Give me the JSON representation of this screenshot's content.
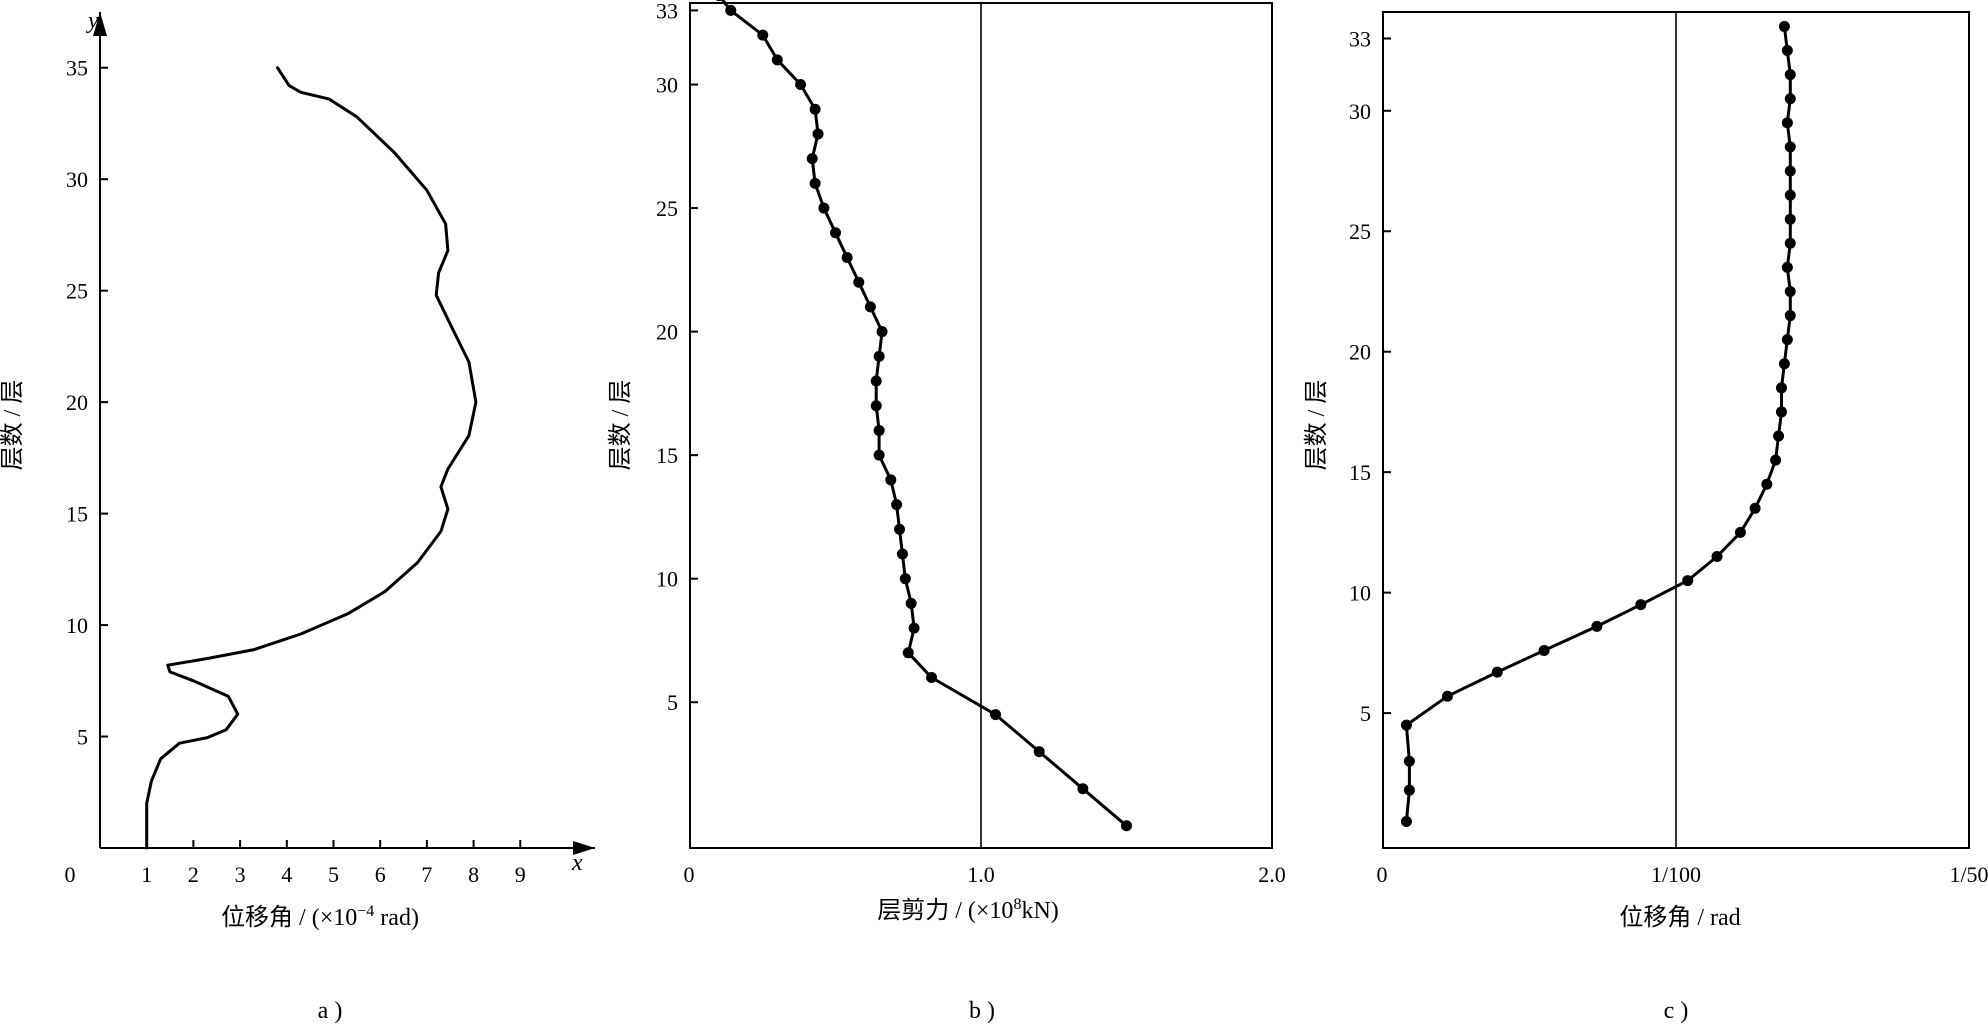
{
  "chart_data": [
    {
      "id": "a",
      "type": "line",
      "caption": "a )",
      "title": "",
      "xlabel": "位移角 / (×10",
      "xlabel_sup": "−4",
      "xlabel_suffix": " rad)",
      "ylabel": "层数 / 层",
      "x_axis_name": "x",
      "y_axis_name": "y",
      "xlim": [
        0,
        10.6
      ],
      "ylim": [
        0,
        37.5
      ],
      "xticks": [
        0,
        1,
        2,
        3,
        4,
        5,
        6,
        7,
        8,
        9
      ],
      "xtick_labels": [
        "0",
        "1",
        "2",
        "3",
        "4",
        "5",
        "6",
        "7",
        "8",
        "9"
      ],
      "yticks": [
        5,
        10,
        15,
        20,
        25,
        30,
        35
      ],
      "ytick_labels": [
        "5",
        "10",
        "15",
        "20",
        "25",
        "30",
        "35"
      ],
      "series": [
        {
          "points": [
            [
              1.0,
              0
            ],
            [
              1.0,
              2.0
            ],
            [
              1.1,
              3.0
            ],
            [
              1.3,
              4.0
            ],
            [
              1.7,
              4.7
            ],
            [
              2.3,
              4.95
            ],
            [
              2.7,
              5.3
            ],
            [
              2.95,
              6.0
            ],
            [
              2.75,
              6.8
            ],
            [
              2.0,
              7.5
            ],
            [
              1.5,
              7.9
            ],
            [
              1.45,
              8.2
            ],
            [
              2.3,
              8.5
            ],
            [
              3.3,
              8.9
            ],
            [
              4.3,
              9.6
            ],
            [
              5.3,
              10.5
            ],
            [
              6.1,
              11.5
            ],
            [
              6.8,
              12.8
            ],
            [
              7.3,
              14.2
            ],
            [
              7.45,
              15.2
            ],
            [
              7.3,
              16.2
            ],
            [
              7.45,
              17.0
            ],
            [
              7.9,
              18.5
            ],
            [
              8.05,
              20.0
            ],
            [
              7.9,
              21.8
            ],
            [
              7.5,
              23.5
            ],
            [
              7.2,
              24.8
            ],
            [
              7.25,
              25.8
            ],
            [
              7.45,
              26.8
            ],
            [
              7.4,
              28.0
            ],
            [
              7.0,
              29.5
            ],
            [
              6.3,
              31.2
            ],
            [
              5.5,
              32.8
            ],
            [
              4.9,
              33.6
            ],
            [
              4.3,
              33.9
            ],
            [
              4.05,
              34.2
            ],
            [
              3.8,
              35.0
            ]
          ]
        }
      ]
    },
    {
      "id": "b",
      "type": "line",
      "caption": "b )",
      "title": "",
      "xlabel": "层剪力 / (×10",
      "xlabel_sup": "8",
      "xlabel_suffix": "kN)",
      "ylabel": "层数 / 层",
      "xlim": [
        0,
        2.0
      ],
      "ylim": [
        -0.9,
        33.3
      ],
      "xticks": [
        0,
        1.0,
        2.0
      ],
      "xtick_labels": [
        "0",
        "1.0",
        "2.0"
      ],
      "yticks": [
        5,
        10,
        15,
        20,
        25,
        30,
        33
      ],
      "ytick_labels": [
        "5",
        "10",
        "15",
        "20",
        "25",
        "30",
        "33"
      ],
      "reference_x": 1.0,
      "series": [
        {
          "markers": true,
          "points": [
            [
              1.5,
              0
            ],
            [
              1.35,
              1.5
            ],
            [
              1.2,
              3.0
            ],
            [
              1.05,
              4.5
            ],
            [
              0.83,
              6.0
            ],
            [
              0.75,
              7.0
            ],
            [
              0.77,
              8.0
            ],
            [
              0.76,
              9.0
            ],
            [
              0.74,
              10.0
            ],
            [
              0.73,
              11.0
            ],
            [
              0.72,
              12.0
            ],
            [
              0.71,
              13.0
            ],
            [
              0.69,
              14.0
            ],
            [
              0.65,
              15.0
            ],
            [
              0.65,
              16.0
            ],
            [
              0.64,
              17.0
            ],
            [
              0.64,
              18.0
            ],
            [
              0.65,
              19.0
            ],
            [
              0.66,
              20.0
            ],
            [
              0.62,
              21.0
            ],
            [
              0.58,
              22.0
            ],
            [
              0.54,
              23.0
            ],
            [
              0.5,
              24.0
            ],
            [
              0.46,
              25.0
            ],
            [
              0.43,
              26.0
            ],
            [
              0.42,
              27.0
            ],
            [
              0.44,
              28.0
            ],
            [
              0.43,
              29.0
            ],
            [
              0.38,
              30.0
            ],
            [
              0.3,
              31.0
            ],
            [
              0.25,
              32.0
            ],
            [
              0.14,
              33.0
            ],
            [
              0.1,
              33.6
            ]
          ]
        }
      ]
    },
    {
      "id": "c",
      "type": "line",
      "caption": "c )",
      "title": "",
      "xlabel": "位移角 / rad",
      "ylabel": "层数 / 层",
      "xlim": [
        0,
        0.02
      ],
      "ylim": [
        -0.6,
        34.1
      ],
      "xticks": [
        0,
        0.01,
        0.02
      ],
      "xtick_labels": [
        "0",
        "1/100",
        "1/50"
      ],
      "yticks": [
        5,
        10,
        15,
        20,
        25,
        30,
        33
      ],
      "ytick_labels": [
        "5",
        "10",
        "15",
        "20",
        "25",
        "30",
        "33"
      ],
      "reference_x": 0.01,
      "series": [
        {
          "markers": true,
          "points": [
            [
              0.0008,
              0.5
            ],
            [
              0.0009,
              1.8
            ],
            [
              0.0009,
              3.0
            ],
            [
              0.0008,
              4.5
            ],
            [
              0.0022,
              5.7
            ],
            [
              0.0039,
              6.7
            ],
            [
              0.0055,
              7.6
            ],
            [
              0.0073,
              8.6
            ],
            [
              0.0088,
              9.5
            ],
            [
              0.0104,
              10.5
            ],
            [
              0.0114,
              11.5
            ],
            [
              0.0122,
              12.5
            ],
            [
              0.0127,
              13.5
            ],
            [
              0.0131,
              14.5
            ],
            [
              0.0134,
              15.5
            ],
            [
              0.0135,
              16.5
            ],
            [
              0.0136,
              17.5
            ],
            [
              0.0136,
              18.5
            ],
            [
              0.0137,
              19.5
            ],
            [
              0.0138,
              20.5
            ],
            [
              0.0139,
              21.5
            ],
            [
              0.0139,
              22.5
            ],
            [
              0.0138,
              23.5
            ],
            [
              0.0139,
              24.5
            ],
            [
              0.0139,
              25.5
            ],
            [
              0.0139,
              26.5
            ],
            [
              0.0139,
              27.5
            ],
            [
              0.0139,
              28.5
            ],
            [
              0.0138,
              29.5
            ],
            [
              0.0139,
              30.5
            ],
            [
              0.0139,
              31.5
            ],
            [
              0.0138,
              32.5
            ],
            [
              0.0137,
              33.5
            ]
          ]
        }
      ]
    }
  ]
}
